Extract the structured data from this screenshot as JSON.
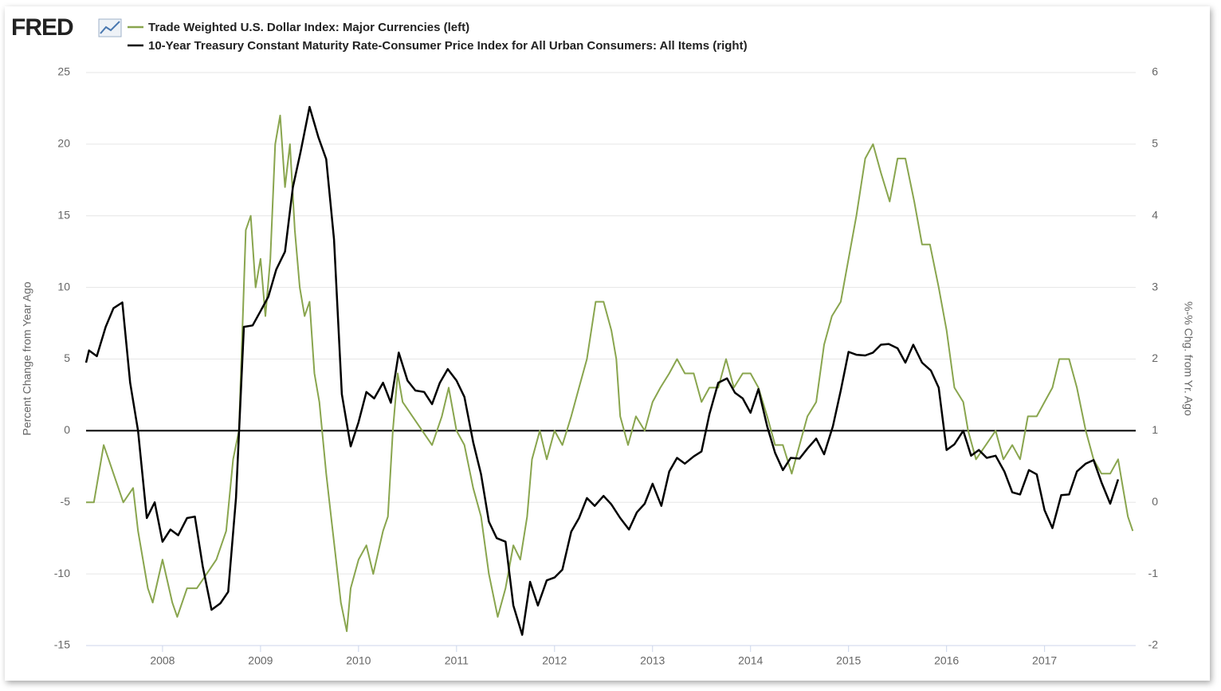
{
  "chart_data": {
    "type": "line",
    "logo": "FRED",
    "ylabel": "Percent Change from Year Ago",
    "y2label": "%-% Chg. from Yr. Ago",
    "xlim": [
      2007.22,
      2017.93
    ],
    "xticks": [
      2008,
      2009,
      2010,
      2011,
      2012,
      2013,
      2014,
      2015,
      2016,
      2017
    ],
    "ylim": [
      -15,
      25
    ],
    "yticks": [
      -15,
      -10,
      -5,
      0,
      5,
      10,
      15,
      20,
      25
    ],
    "y2lim": [
      -2,
      6
    ],
    "y2ticks": [
      -2,
      -1,
      0,
      1,
      2,
      3,
      4,
      5,
      6
    ],
    "grid": true,
    "series": [
      {
        "name": "Trade Weighted U.S. Dollar Index: Major Currencies (left)",
        "color": "#89a54e",
        "axis": "y",
        "x": [
          2007.22,
          2007.3,
          2007.4,
          2007.45,
          2007.5,
          2007.6,
          2007.7,
          2007.75,
          2007.85,
          2007.9,
          2008.0,
          2008.1,
          2008.15,
          2008.25,
          2008.35,
          2008.45,
          2008.55,
          2008.65,
          2008.72,
          2008.78,
          2008.85,
          2008.9,
          2008.95,
          2009.0,
          2009.05,
          2009.1,
          2009.15,
          2009.2,
          2009.25,
          2009.3,
          2009.35,
          2009.4,
          2009.45,
          2009.5,
          2009.55,
          2009.6,
          2009.67,
          2009.72,
          2009.77,
          2009.82,
          2009.88,
          2009.92,
          2010.0,
          2010.08,
          2010.15,
          2010.25,
          2010.3,
          2010.35,
          2010.4,
          2010.45,
          2010.55,
          2010.65,
          2010.75,
          2010.85,
          2010.92,
          2011.0,
          2011.08,
          2011.17,
          2011.25,
          2011.33,
          2011.42,
          2011.5,
          2011.58,
          2011.65,
          2011.72,
          2011.77,
          2011.85,
          2011.92,
          2012.0,
          2012.08,
          2012.17,
          2012.25,
          2012.33,
          2012.42,
          2012.5,
          2012.58,
          2012.63,
          2012.67,
          2012.75,
          2012.83,
          2012.92,
          2013.0,
          2013.08,
          2013.17,
          2013.25,
          2013.33,
          2013.42,
          2013.5,
          2013.58,
          2013.67,
          2013.75,
          2013.83,
          2013.92,
          2014.0,
          2014.08,
          2014.17,
          2014.25,
          2014.33,
          2014.42,
          2014.5,
          2014.58,
          2014.67,
          2014.75,
          2014.83,
          2014.92,
          2015.0,
          2015.08,
          2015.17,
          2015.25,
          2015.33,
          2015.42,
          2015.5,
          2015.58,
          2015.67,
          2015.75,
          2015.83,
          2015.92,
          2016.0,
          2016.08,
          2016.17,
          2016.22,
          2016.3,
          2016.4,
          2016.5,
          2016.58,
          2016.67,
          2016.75,
          2016.83,
          2016.92,
          2017.0,
          2017.08,
          2017.15,
          2017.25,
          2017.33,
          2017.42,
          2017.5,
          2017.58,
          2017.67,
          2017.75,
          2017.8,
          2017.85,
          2017.9
        ],
        "values": [
          -5,
          -5,
          -1,
          -2,
          -3,
          -5,
          -4,
          -7,
          -11,
          -12,
          -9,
          -12,
          -13,
          -11,
          -11,
          -10,
          -9,
          -7,
          -2,
          0,
          14,
          15,
          10,
          12,
          8,
          12,
          20,
          22,
          17,
          20,
          14,
          10,
          8,
          9,
          4,
          2,
          -3,
          -6,
          -9,
          -12,
          -14,
          -11,
          -9,
          -8,
          -10,
          -7,
          -6,
          0,
          4,
          2,
          1,
          0,
          -1,
          1,
          3,
          0,
          -1,
          -4,
          -6,
          -10,
          -13,
          -11,
          -8,
          -9,
          -6,
          -2,
          0,
          -2,
          0,
          -1,
          1,
          3,
          5,
          9,
          9,
          7,
          5,
          1,
          -1,
          1,
          0,
          2,
          3,
          4,
          5,
          4,
          4,
          2,
          3,
          3,
          5,
          3,
          4,
          4,
          3,
          1,
          -1,
          -1,
          -3,
          -1,
          1,
          2,
          6,
          8,
          9,
          12,
          15,
          19,
          20,
          18,
          16,
          19,
          19,
          16,
          13,
          13,
          10,
          7,
          3,
          2,
          0,
          -2,
          -1,
          0,
          -2,
          -1,
          -2,
          1,
          1,
          2,
          3,
          5,
          5,
          3,
          0,
          -2,
          -3,
          -3,
          -2,
          -4,
          -6,
          -7
        ]
      },
      {
        "name": "10-Year Treasury Constant Maturity Rate-Consumer Price Index for All Urban Consumers: All Items (right)",
        "color": "#000000",
        "axis": "y2",
        "x": [
          2007.22,
          2007.25,
          2007.33,
          2007.42,
          2007.5,
          2007.59,
          2007.67,
          2007.75,
          2007.84,
          2007.92,
          2008.0,
          2008.08,
          2008.16,
          2008.25,
          2008.33,
          2008.41,
          2008.5,
          2008.59,
          2008.67,
          2008.75,
          2008.83,
          2008.92,
          2009.0,
          2009.08,
          2009.16,
          2009.25,
          2009.33,
          2009.41,
          2009.5,
          2009.59,
          2009.67,
          2009.75,
          2009.83,
          2009.92,
          2010.0,
          2010.08,
          2010.16,
          2010.25,
          2010.33,
          2010.41,
          2010.5,
          2010.58,
          2010.67,
          2010.75,
          2010.83,
          2010.91,
          2011.0,
          2011.08,
          2011.17,
          2011.25,
          2011.33,
          2011.41,
          2011.5,
          2011.58,
          2011.67,
          2011.75,
          2011.83,
          2011.92,
          2012.0,
          2012.08,
          2012.17,
          2012.25,
          2012.33,
          2012.41,
          2012.5,
          2012.58,
          2012.67,
          2012.76,
          2012.84,
          2012.92,
          2013.0,
          2013.09,
          2013.17,
          2013.25,
          2013.33,
          2013.42,
          2013.5,
          2013.58,
          2013.67,
          2013.76,
          2013.84,
          2013.92,
          2014.0,
          2014.08,
          2014.17,
          2014.25,
          2014.33,
          2014.41,
          2014.5,
          2014.58,
          2014.67,
          2014.75,
          2014.84,
          2014.92,
          2015.0,
          2015.08,
          2015.17,
          2015.25,
          2015.33,
          2015.41,
          2015.5,
          2015.58,
          2015.66,
          2015.75,
          2015.84,
          2015.92,
          2016.0,
          2016.08,
          2016.17,
          2016.25,
          2016.33,
          2016.41,
          2016.5,
          2016.59,
          2016.67,
          2016.75,
          2016.84,
          2016.92,
          2017.0,
          2017.08,
          2017.17,
          2017.25,
          2017.33,
          2017.42,
          2017.5,
          2017.58,
          2017.67,
          2017.75
        ],
        "values": [
          1.95,
          2.12,
          2.04,
          2.45,
          2.71,
          2.79,
          1.67,
          1.0,
          -0.22,
          0.0,
          -0.55,
          -0.38,
          -0.46,
          -0.22,
          -0.2,
          -0.89,
          -1.5,
          -1.41,
          -1.25,
          0.06,
          2.45,
          2.47,
          2.67,
          2.87,
          3.25,
          3.5,
          4.4,
          4.9,
          5.52,
          5.1,
          4.79,
          3.67,
          1.51,
          0.78,
          1.12,
          1.54,
          1.45,
          1.67,
          1.39,
          2.09,
          1.7,
          1.56,
          1.54,
          1.37,
          1.67,
          1.86,
          1.7,
          1.47,
          0.84,
          0.39,
          -0.27,
          -0.5,
          -0.55,
          -1.44,
          -1.85,
          -1.11,
          -1.44,
          -1.09,
          -1.05,
          -0.94,
          -0.41,
          -0.22,
          0.06,
          -0.05,
          0.09,
          -0.03,
          -0.22,
          -0.38,
          -0.14,
          -0.02,
          0.26,
          -0.05,
          0.43,
          0.62,
          0.54,
          0.64,
          0.71,
          1.23,
          1.67,
          1.73,
          1.53,
          1.45,
          1.25,
          1.58,
          1.06,
          0.69,
          0.45,
          0.62,
          0.61,
          0.75,
          0.89,
          0.67,
          1.06,
          1.56,
          2.1,
          2.06,
          2.05,
          2.09,
          2.2,
          2.21,
          2.15,
          1.95,
          2.2,
          1.95,
          1.84,
          1.6,
          0.73,
          0.81,
          1.0,
          0.65,
          0.73,
          0.62,
          0.65,
          0.43,
          0.14,
          0.11,
          0.45,
          0.39,
          -0.11,
          -0.36,
          0.1,
          0.11,
          0.43,
          0.54,
          0.59,
          0.28,
          -0.02,
          0.32
        ]
      }
    ]
  }
}
